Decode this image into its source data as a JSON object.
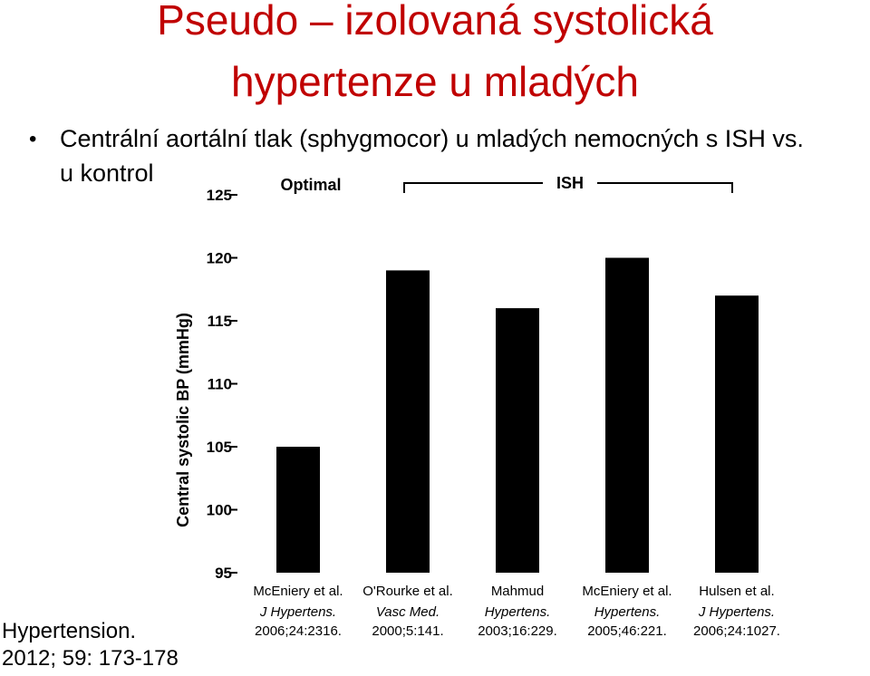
{
  "slide": {
    "title_line1": "Pseudo – izolovaná systolická",
    "title_line2": "hypertenze u mladých",
    "bullet": "Centrální aortální tlak (sphygmocor) u mladých nemocných s ISH vs. u kontrol",
    "bullet_line1": "Centrální aortální tlak (sphygmocor) u mladých nemocných s ISH vs.",
    "bullet_line2": "u kontrol",
    "citation_line1": "Hypertension.",
    "citation_line2": "2012; 59: 173-178"
  },
  "chart_data": {
    "type": "bar",
    "ylabel": "Central systolic BP (mmHg)",
    "ylim": [
      95,
      125
    ],
    "yticks": [
      95,
      100,
      105,
      110,
      115,
      120,
      125
    ],
    "grid": false,
    "groups": [
      {
        "label": "Optimal",
        "members": [
          0
        ]
      },
      {
        "label": "ISH",
        "members": [
          1,
          2,
          3,
          4
        ]
      }
    ],
    "categories": [
      {
        "author": "McEniery et al.",
        "journal": "J Hypertens.",
        "ref": "2006;24:2316."
      },
      {
        "author": "O'Rourke et al.",
        "journal": "Vasc Med.",
        "ref": "2000;5:141."
      },
      {
        "author": "Mahmud",
        "journal": "Hypertens.",
        "ref": "2003;16:229."
      },
      {
        "author": "McEniery et al.",
        "journal": "Hypertens.",
        "ref": "2005;46:221."
      },
      {
        "author": "Hulsen et al.",
        "journal": "J Hypertens.",
        "ref": "2006;24:1027."
      }
    ],
    "values": [
      105,
      119,
      116,
      120,
      117
    ],
    "bar_color": "#000000"
  }
}
